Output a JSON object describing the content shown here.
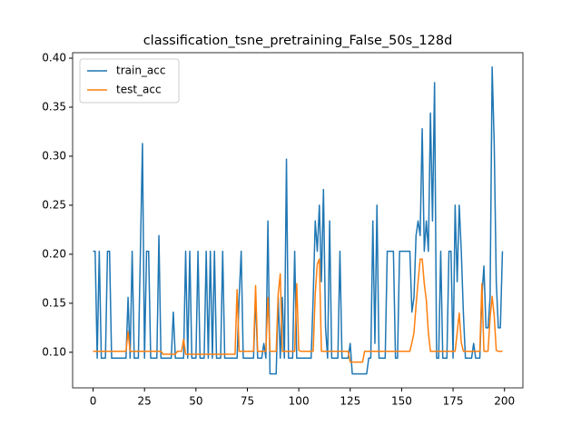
{
  "chart_data": {
    "type": "line",
    "title": "classification_tsne_pretraining_False_50s_128d",
    "x": [
      0,
      1,
      2,
      3,
      4,
      5,
      6,
      7,
      8,
      9,
      10,
      11,
      12,
      13,
      14,
      15,
      16,
      17,
      18,
      19,
      20,
      21,
      22,
      23,
      24,
      25,
      26,
      27,
      28,
      29,
      30,
      31,
      32,
      33,
      34,
      35,
      36,
      37,
      38,
      39,
      40,
      41,
      42,
      43,
      44,
      45,
      46,
      47,
      48,
      49,
      50,
      51,
      52,
      53,
      54,
      55,
      56,
      57,
      58,
      59,
      60,
      61,
      62,
      63,
      64,
      65,
      66,
      67,
      68,
      69,
      70,
      71,
      72,
      73,
      74,
      75,
      76,
      77,
      78,
      79,
      80,
      81,
      82,
      83,
      84,
      85,
      86,
      87,
      88,
      89,
      90,
      91,
      92,
      93,
      94,
      95,
      96,
      97,
      98,
      99,
      100,
      101,
      102,
      103,
      104,
      105,
      106,
      107,
      108,
      109,
      110,
      111,
      112,
      113,
      114,
      115,
      116,
      117,
      118,
      119,
      120,
      121,
      122,
      123,
      124,
      125,
      126,
      127,
      128,
      129,
      130,
      131,
      132,
      133,
      134,
      135,
      136,
      137,
      138,
      139,
      140,
      141,
      142,
      143,
      144,
      145,
      146,
      147,
      148,
      149,
      150,
      151,
      152,
      153,
      154,
      155,
      156,
      157,
      158,
      159,
      160,
      161,
      162,
      163,
      164,
      165,
      166,
      167,
      168,
      169,
      170,
      171,
      172,
      173,
      174,
      175,
      176,
      177,
      178,
      179,
      180,
      181,
      182,
      183,
      184,
      185,
      186,
      187,
      188,
      189,
      190,
      191,
      192,
      193,
      194,
      195,
      196,
      197,
      198,
      199
    ],
    "series": [
      {
        "name": "train_acc",
        "color": "#1f77b4",
        "values": [
          0.203,
          0.203,
          0.094,
          0.203,
          0.094,
          0.094,
          0.094,
          0.203,
          0.203,
          0.094,
          0.094,
          0.094,
          0.094,
          0.094,
          0.094,
          0.094,
          0.094,
          0.156,
          0.094,
          0.203,
          0.094,
          0.094,
          0.094,
          0.203,
          0.313,
          0.094,
          0.203,
          0.203,
          0.094,
          0.094,
          0.094,
          0.094,
          0.219,
          0.094,
          0.094,
          0.094,
          0.094,
          0.094,
          0.094,
          0.141,
          0.094,
          0.094,
          0.094,
          0.094,
          0.094,
          0.203,
          0.094,
          0.203,
          0.094,
          0.094,
          0.094,
          0.203,
          0.094,
          0.094,
          0.094,
          0.203,
          0.094,
          0.203,
          0.094,
          0.203,
          0.094,
          0.094,
          0.094,
          0.203,
          0.094,
          0.094,
          0.094,
          0.094,
          0.094,
          0.094,
          0.094,
          0.156,
          0.203,
          0.094,
          0.094,
          0.094,
          0.094,
          0.094,
          0.094,
          0.156,
          0.094,
          0.094,
          0.094,
          0.109,
          0.094,
          0.234,
          0.078,
          0.078,
          0.078,
          0.078,
          0.156,
          0.094,
          0.156,
          0.094,
          0.297,
          0.094,
          0.094,
          0.094,
          0.203,
          0.094,
          0.094,
          0.094,
          0.094,
          0.094,
          0.094,
          0.094,
          0.094,
          0.156,
          0.234,
          0.203,
          0.25,
          0.172,
          0.266,
          0.125,
          0.094,
          0.234,
          0.094,
          0.094,
          0.094,
          0.094,
          0.203,
          0.094,
          0.094,
          0.094,
          0.094,
          0.109,
          0.078,
          0.078,
          0.078,
          0.078,
          0.078,
          0.078,
          0.078,
          0.078,
          0.094,
          0.094,
          0.234,
          0.109,
          0.25,
          0.094,
          0.094,
          0.094,
          0.094,
          0.203,
          0.203,
          0.203,
          0.203,
          0.094,
          0.094,
          0.203,
          0.203,
          0.203,
          0.203,
          0.203,
          0.203,
          0.141,
          0.156,
          0.219,
          0.234,
          0.219,
          0.328,
          0.203,
          0.234,
          0.203,
          0.344,
          0.234,
          0.375,
          0.094,
          0.094,
          0.203,
          0.094,
          0.094,
          0.094,
          0.203,
          0.203,
          0.094,
          0.25,
          0.172,
          0.25,
          0.203,
          0.141,
          0.094,
          0.094,
          0.094,
          0.094,
          0.109,
          0.094,
          0.094,
          0.094,
          0.156,
          0.188,
          0.125,
          0.125,
          0.156,
          0.391,
          0.313,
          0.172,
          0.125,
          0.125,
          0.203
        ]
      },
      {
        "name": "test_acc",
        "color": "#ff7f0e",
        "values": [
          0.101,
          0.101,
          0.101,
          0.101,
          0.101,
          0.101,
          0.101,
          0.101,
          0.101,
          0.101,
          0.101,
          0.101,
          0.101,
          0.101,
          0.101,
          0.101,
          0.101,
          0.121,
          0.101,
          0.101,
          0.101,
          0.101,
          0.101,
          0.101,
          0.101,
          0.101,
          0.101,
          0.101,
          0.101,
          0.101,
          0.101,
          0.101,
          0.101,
          0.101,
          0.098,
          0.098,
          0.098,
          0.098,
          0.098,
          0.098,
          0.098,
          0.101,
          0.101,
          0.101,
          0.113,
          0.098,
          0.098,
          0.098,
          0.098,
          0.098,
          0.098,
          0.098,
          0.098,
          0.098,
          0.098,
          0.098,
          0.098,
          0.098,
          0.098,
          0.098,
          0.098,
          0.098,
          0.098,
          0.098,
          0.098,
          0.098,
          0.098,
          0.098,
          0.098,
          0.098,
          0.164,
          0.101,
          0.101,
          0.101,
          0.101,
          0.101,
          0.101,
          0.101,
          0.101,
          0.168,
          0.101,
          0.101,
          0.101,
          0.101,
          0.101,
          0.156,
          0.101,
          0.101,
          0.101,
          0.101,
          0.16,
          0.18,
          0.101,
          0.101,
          0.101,
          0.101,
          0.101,
          0.101,
          0.101,
          0.17,
          0.102,
          0.101,
          0.101,
          0.101,
          0.101,
          0.101,
          0.101,
          0.101,
          0.16,
          0.19,
          0.195,
          0.101,
          0.101,
          0.101,
          0.101,
          0.101,
          0.101,
          0.101,
          0.101,
          0.101,
          0.101,
          0.101,
          0.101,
          0.101,
          0.101,
          0.09,
          0.09,
          0.09,
          0.09,
          0.09,
          0.09,
          0.09,
          0.101,
          0.101,
          0.101,
          0.101,
          0.101,
          0.101,
          0.101,
          0.101,
          0.101,
          0.101,
          0.101,
          0.101,
          0.101,
          0.101,
          0.101,
          0.101,
          0.101,
          0.101,
          0.101,
          0.101,
          0.101,
          0.101,
          0.101,
          0.11,
          0.12,
          0.148,
          0.172,
          0.195,
          0.195,
          0.17,
          0.153,
          0.12,
          0.101,
          0.101,
          0.101,
          0.101,
          0.101,
          0.101,
          0.101,
          0.101,
          0.101,
          0.101,
          0.101,
          0.101,
          0.101,
          0.12,
          0.14,
          0.11,
          0.101,
          0.101,
          0.101,
          0.101,
          0.101,
          0.101,
          0.101,
          0.101,
          0.101,
          0.17,
          0.101,
          0.101,
          0.101,
          0.135,
          0.157,
          0.137,
          0.102,
          0.101,
          0.101,
          0.101
        ]
      }
    ],
    "xlim": [
      -9.95,
      208.95
    ],
    "xticks": [
      0,
      25,
      50,
      75,
      100,
      125,
      150,
      175,
      200
    ],
    "ylim": [
      0.0637,
      0.4056
    ],
    "yticks": [
      {
        "value": 0.1,
        "label": "0.10"
      },
      {
        "value": 0.15,
        "label": "0.15"
      },
      {
        "value": 0.2,
        "label": "0.20"
      },
      {
        "value": 0.25,
        "label": "0.25"
      },
      {
        "value": 0.3,
        "label": "0.30"
      },
      {
        "value": 0.35,
        "label": "0.35"
      },
      {
        "value": 0.4,
        "label": "0.40"
      }
    ],
    "legend": "upper left"
  }
}
